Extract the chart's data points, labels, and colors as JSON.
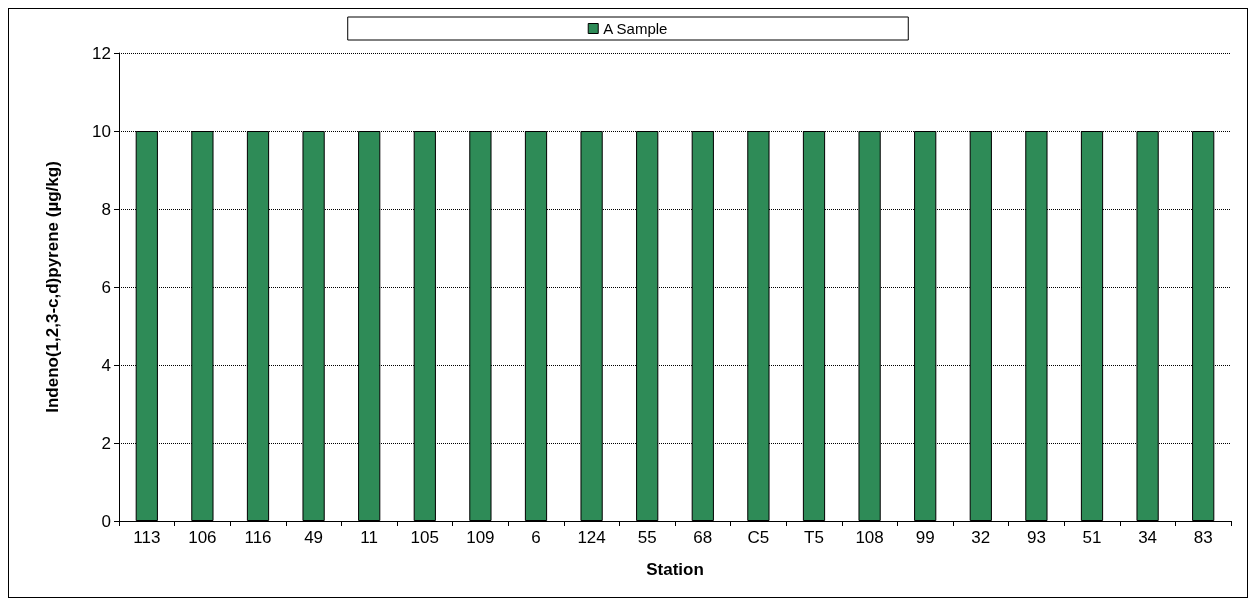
{
  "chart_data": {
    "type": "bar",
    "xlabel": "Station",
    "ylabel": "Indeno(1,2,3-c,d)pyrene (µg/kg)",
    "categories": [
      "113",
      "106",
      "116",
      "49",
      "11",
      "105",
      "109",
      "6",
      "124",
      "55",
      "68",
      "C5",
      "T5",
      "108",
      "99",
      "32",
      "93",
      "51",
      "34",
      "83"
    ],
    "series": [
      {
        "name": "A Sample",
        "color": "#2e8b57",
        "values": [
          10,
          10,
          10,
          10,
          10,
          10,
          10,
          10,
          10,
          10,
          10,
          10,
          10,
          10,
          10,
          10,
          10,
          10,
          10,
          10
        ]
      }
    ],
    "ylim": [
      0,
      12
    ],
    "yticks": [
      0,
      2,
      4,
      6,
      8,
      10,
      12
    ],
    "grid": "y",
    "legend": "top"
  }
}
